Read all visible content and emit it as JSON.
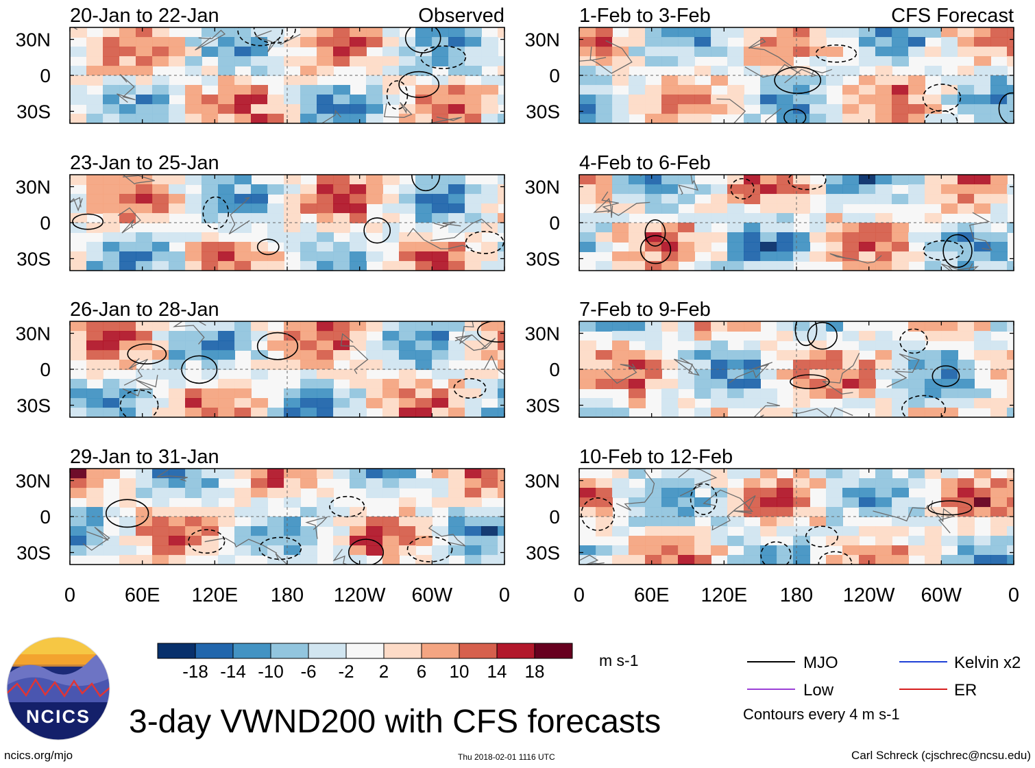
{
  "colors": {
    "scale": [
      "#08306b",
      "#2166ac",
      "#4393c3",
      "#92c5de",
      "#d1e5f0",
      "#f7f7f7",
      "#fddbc7",
      "#f4a582",
      "#d6604d",
      "#b2182b",
      "#67001f"
    ],
    "mjo": "#000000",
    "kelvin": "#1d3fd6",
    "low": "#9b3fd6",
    "er": "#d61d1d",
    "grid": "#666666",
    "land": "#6b6b6b"
  },
  "header": {
    "observed_label": "Observed",
    "forecast_label": "CFS Forecast"
  },
  "chart_data": {
    "type": "heatmap",
    "variable": "VWND200",
    "units": "m s-1",
    "x_ticks": [
      "0",
      "60E",
      "120E",
      "180",
      "120W",
      "60W",
      "0"
    ],
    "x_values": [
      0,
      60,
      120,
      180,
      240,
      300,
      360
    ],
    "y_ticks": [
      "30N",
      "0",
      "30S"
    ],
    "y_values": [
      30,
      0,
      -30
    ],
    "xlim": [
      0,
      360
    ],
    "ylim": [
      -40,
      40
    ],
    "color_levels": [
      "-18",
      "-14",
      "-10",
      "-6",
      "-2",
      "2",
      "6",
      "10",
      "14",
      "18"
    ],
    "panels": [
      {
        "title": "20-Jan to 22-Jan",
        "group": "Observed",
        "seed": 11
      },
      {
        "title": "23-Jan to 25-Jan",
        "group": "Observed",
        "seed": 23
      },
      {
        "title": "26-Jan to 28-Jan",
        "group": "Observed",
        "seed": 37
      },
      {
        "title": "29-Jan to 31-Jan",
        "group": "Observed",
        "seed": 41
      },
      {
        "title": "1-Feb to 3-Feb",
        "group": "CFS Forecast",
        "seed": 53
      },
      {
        "title": "4-Feb to 6-Feb",
        "group": "CFS Forecast",
        "seed": 67
      },
      {
        "title": "7-Feb to 9-Feb",
        "group": "CFS Forecast",
        "seed": 71
      },
      {
        "title": "10-Feb to 12-Feb",
        "group": "CFS Forecast",
        "seed": 89
      }
    ]
  },
  "legend": {
    "units": "m s-1",
    "items": [
      {
        "label": "MJO",
        "color": "#000000"
      },
      {
        "label": "Kelvin x2",
        "color": "#1d3fd6"
      },
      {
        "label": "Low",
        "color": "#9b3fd6"
      },
      {
        "label": "ER",
        "color": "#d61d1d"
      }
    ],
    "contour_note": "Contours every 4 m s-1"
  },
  "logo": {
    "text": "NCICS"
  },
  "footer": {
    "title": "3-day VWND200 with CFS forecasts",
    "url": "ncics.org/mjo",
    "timestamp": "Thu 2018-02-01 1116 UTC",
    "credit": "Carl Schreck (cjschrec@ncsu.edu)"
  }
}
